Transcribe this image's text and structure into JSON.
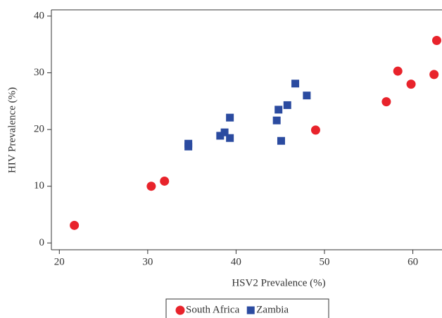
{
  "chart_data": {
    "type": "scatter",
    "x_label": "HSV2 Prevalence (%)",
    "y_label": "HIV Prevalence (%)",
    "xlim": [
      19.1,
      63.3
    ],
    "ylim": [
      -1.2,
      41.1
    ],
    "xticks": [
      20,
      30,
      40,
      50,
      60
    ],
    "yticks": [
      0,
      10,
      20,
      30,
      40
    ],
    "series": [
      {
        "name": "South Africa",
        "color": "#e8232b",
        "marker": "circle",
        "x": [
          21.7,
          30.4,
          31.9,
          49.0,
          57.0,
          58.3,
          59.8,
          62.4,
          62.7
        ],
        "values": [
          3.1,
          10.0,
          10.9,
          19.9,
          24.9,
          30.3,
          28.0,
          29.7,
          35.7
        ]
      },
      {
        "name": "Zambia",
        "color": "#2b4ba0",
        "marker": "square",
        "x": [
          34.6,
          34.6,
          38.2,
          38.7,
          39.3,
          39.3,
          44.6,
          44.8,
          45.1,
          45.8,
          46.7,
          48.0
        ],
        "values": [
          17.5,
          17.0,
          18.9,
          19.5,
          18.5,
          22.1,
          21.6,
          23.5,
          18.0,
          24.3,
          28.1,
          26.0
        ]
      }
    ]
  }
}
